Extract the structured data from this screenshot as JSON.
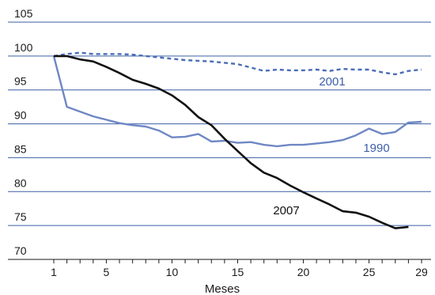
{
  "chart_data": {
    "type": "line",
    "xlabel": "Meses",
    "ylabel": "",
    "xlim": [
      1,
      29
    ],
    "ylim": [
      70,
      105
    ],
    "x_ticks": [
      1,
      5,
      10,
      15,
      20,
      25,
      29
    ],
    "y_ticks": [
      70,
      75,
      80,
      85,
      90,
      95,
      100,
      105
    ],
    "grid": "horizontal",
    "colors": {
      "grid": "#3b5fa6",
      "line_2001": "#4a6db5",
      "line_1990": "#6f87c4",
      "line_2007": "#111111",
      "label_blue": "#3b5fa6",
      "label_black": "#111111"
    },
    "series": [
      {
        "name": "2001",
        "style": "dashed",
        "x": [
          1,
          2,
          3,
          4,
          5,
          6,
          7,
          8,
          9,
          10,
          11,
          12,
          13,
          14,
          15,
          16,
          17,
          18,
          19,
          20,
          21,
          22,
          23,
          24,
          25,
          26,
          27,
          28,
          29
        ],
        "values": [
          100,
          100.3,
          100.5,
          100.3,
          100.3,
          100.3,
          100.2,
          100.0,
          99.8,
          99.6,
          99.4,
          99.3,
          99.2,
          99.0,
          98.8,
          98.3,
          97.8,
          98.0,
          97.9,
          97.9,
          98.0,
          97.8,
          98.1,
          98.0,
          98.0,
          97.6,
          97.3,
          97.8,
          98.0
        ],
        "label": "2001"
      },
      {
        "name": "1990",
        "style": "solid",
        "x": [
          1,
          2,
          3,
          4,
          5,
          6,
          7,
          8,
          9,
          10,
          11,
          12,
          13,
          14,
          15,
          16,
          17,
          18,
          19,
          20,
          21,
          22,
          23,
          24,
          25,
          26,
          27,
          28,
          29
        ],
        "values": [
          100,
          92.5,
          91.8,
          91.1,
          90.6,
          90.1,
          89.8,
          89.6,
          89.0,
          88.0,
          88.1,
          88.5,
          87.4,
          87.5,
          87.2,
          87.3,
          86.9,
          86.7,
          86.9,
          86.9,
          87.1,
          87.3,
          87.6,
          88.3,
          89.3,
          88.5,
          88.8,
          90.2,
          90.3
        ],
        "label": "1990"
      },
      {
        "name": "2007",
        "style": "solid",
        "x": [
          1,
          2,
          3,
          4,
          5,
          6,
          7,
          8,
          9,
          10,
          11,
          12,
          13,
          14,
          15,
          16,
          17,
          18,
          19,
          20,
          21,
          22,
          23,
          24,
          25,
          26,
          27,
          28
        ],
        "values": [
          100,
          100.0,
          99.5,
          99.2,
          98.4,
          97.5,
          96.5,
          95.9,
          95.2,
          94.2,
          92.8,
          91.0,
          89.8,
          87.8,
          86.0,
          84.2,
          82.8,
          82.0,
          80.9,
          79.9,
          79.0,
          78.1,
          77.1,
          76.9,
          76.3,
          75.4,
          74.6,
          74.8
        ],
        "label": "2007"
      }
    ]
  }
}
